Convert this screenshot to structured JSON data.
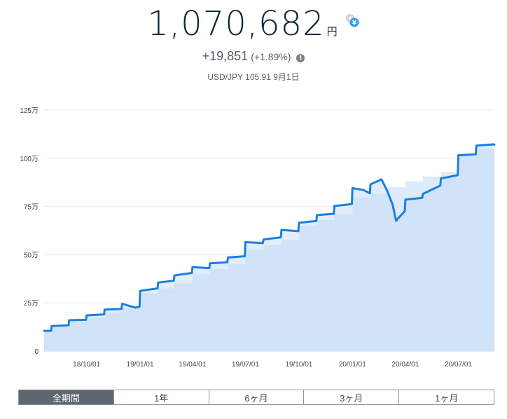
{
  "summary": {
    "total_value": "1,070,682",
    "unit": "円",
    "change_amount": "+19,851",
    "change_pct": "(+1.89%)",
    "fx_rate": "USD/JPY 105.91",
    "date": "9月1日",
    "info_icon": "info-icon",
    "swap_icon": "currency-swap-icon"
  },
  "tabs": [
    {
      "label": "全期間",
      "active": true
    },
    {
      "label": "1年",
      "active": false
    },
    {
      "label": "6ヶ月",
      "active": false
    },
    {
      "label": "3ヶ月",
      "active": false
    },
    {
      "label": "1ヶ月",
      "active": false
    }
  ],
  "colors": {
    "line": "#1a7fe0",
    "fill": "#e2edfa",
    "fill_dark": "#c2dbf5",
    "grid": "#e6e9ec",
    "active_tab": "#5e6670"
  },
  "chart_data": {
    "type": "area",
    "title": "",
    "xlabel": "",
    "ylabel": "",
    "x_tick_labels": [
      "18/10/01",
      "19/01/01",
      "19/04/01",
      "19/07/01",
      "19/10/01",
      "20/01/01",
      "20/04/01",
      "20/07/01"
    ],
    "y_tick_labels": [
      "0",
      "25万",
      "50万",
      "75万",
      "100万",
      "125万"
    ],
    "y_ticks": [
      0,
      250000,
      500000,
      750000,
      1000000,
      1250000
    ],
    "ylim": [
      0,
      1250000
    ],
    "xlim": [
      "2018-07-20",
      "2020-09-01"
    ],
    "grid": true,
    "series": [
      {
        "role": "valuation",
        "points": [
          [
            "2018-07-20",
            105000
          ],
          [
            "2018-08-01",
            105000
          ],
          [
            "2018-08-02",
            130000
          ],
          [
            "2018-08-31",
            133000
          ],
          [
            "2018-09-01",
            160000
          ],
          [
            "2018-09-30",
            162000
          ],
          [
            "2018-10-01",
            185000
          ],
          [
            "2018-10-31",
            190000
          ],
          [
            "2018-11-01",
            215000
          ],
          [
            "2018-11-30",
            218000
          ],
          [
            "2018-12-01",
            245000
          ],
          [
            "2018-12-24",
            225000
          ],
          [
            "2018-12-31",
            230000
          ],
          [
            "2019-01-01",
            312000
          ],
          [
            "2019-01-31",
            325000
          ],
          [
            "2019-02-01",
            355000
          ],
          [
            "2019-02-28",
            365000
          ],
          [
            "2019-03-01",
            392000
          ],
          [
            "2019-03-31",
            405000
          ],
          [
            "2019-04-01",
            435000
          ],
          [
            "2019-04-30",
            430000
          ],
          [
            "2019-05-01",
            455000
          ],
          [
            "2019-05-31",
            460000
          ],
          [
            "2019-06-01",
            485000
          ],
          [
            "2019-06-30",
            492000
          ],
          [
            "2019-07-01",
            565000
          ],
          [
            "2019-07-31",
            560000
          ],
          [
            "2019-08-01",
            578000
          ],
          [
            "2019-08-31",
            590000
          ],
          [
            "2019-09-01",
            628000
          ],
          [
            "2019-09-30",
            622000
          ],
          [
            "2019-10-01",
            665000
          ],
          [
            "2019-10-31",
            675000
          ],
          [
            "2019-11-01",
            705000
          ],
          [
            "2019-11-30",
            712000
          ],
          [
            "2019-12-01",
            752000
          ],
          [
            "2019-12-31",
            762000
          ],
          [
            "2020-01-01",
            845000
          ],
          [
            "2020-01-20",
            835000
          ],
          [
            "2020-01-31",
            818000
          ],
          [
            "2020-02-01",
            865000
          ],
          [
            "2020-02-20",
            890000
          ],
          [
            "2020-02-29",
            835000
          ],
          [
            "2020-03-10",
            760000
          ],
          [
            "2020-03-16",
            675000
          ],
          [
            "2020-03-20",
            690000
          ],
          [
            "2020-03-31",
            725000
          ],
          [
            "2020-04-01",
            785000
          ],
          [
            "2020-04-30",
            795000
          ],
          [
            "2020-05-01",
            815000
          ],
          [
            "2020-05-31",
            858000
          ],
          [
            "2020-06-01",
            895000
          ],
          [
            "2020-06-30",
            912000
          ],
          [
            "2020-07-01",
            1015000
          ],
          [
            "2020-07-31",
            1020000
          ],
          [
            "2020-08-01",
            1065000
          ],
          [
            "2020-08-31",
            1072000
          ],
          [
            "2020-09-01",
            1070682
          ]
        ]
      },
      {
        "role": "principal",
        "points": [
          [
            "2018-07-20",
            100000
          ],
          [
            "2018-08-01",
            125000
          ],
          [
            "2018-09-01",
            150000
          ],
          [
            "2018-10-01",
            175000
          ],
          [
            "2018-11-01",
            200000
          ],
          [
            "2018-12-01",
            225000
          ],
          [
            "2019-01-01",
            300000
          ],
          [
            "2019-02-01",
            325000
          ],
          [
            "2019-03-01",
            350000
          ],
          [
            "2019-04-01",
            400000
          ],
          [
            "2019-05-01",
            425000
          ],
          [
            "2019-06-01",
            450000
          ],
          [
            "2019-07-01",
            525000
          ],
          [
            "2019-08-01",
            550000
          ],
          [
            "2019-09-01",
            575000
          ],
          [
            "2019-10-01",
            650000
          ],
          [
            "2019-11-01",
            680000
          ],
          [
            "2019-12-01",
            710000
          ],
          [
            "2020-01-01",
            795000
          ],
          [
            "2020-02-01",
            815000
          ],
          [
            "2020-03-01",
            850000
          ],
          [
            "2020-04-01",
            880000
          ],
          [
            "2020-05-01",
            905000
          ],
          [
            "2020-06-01",
            930000
          ],
          [
            "2020-07-01",
            1010000
          ],
          [
            "2020-08-01",
            1050000
          ],
          [
            "2020-09-01",
            1050000
          ]
        ]
      }
    ]
  }
}
